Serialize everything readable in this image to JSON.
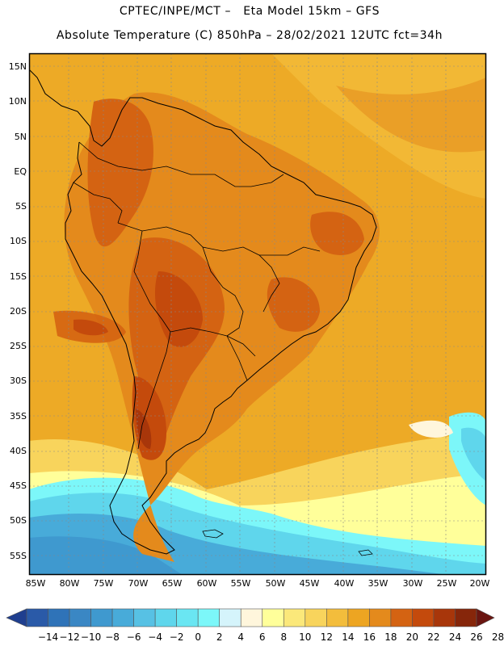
{
  "header": {
    "line1": "CPTEC/INPE/MCT –   Eta Model 15km – GFS",
    "line2": "Absolute Temperature (C) 850hPa – 28/02/2021 12UTC fct=34h"
  },
  "map": {
    "lat_labels": [
      "15N",
      "10N",
      "5N",
      "EQ",
      "5S",
      "10S",
      "15S",
      "20S",
      "25S",
      "30S",
      "35S",
      "40S",
      "45S",
      "50S",
      "55S"
    ],
    "lon_labels": [
      "85W",
      "80W",
      "75W",
      "70W",
      "65W",
      "60W",
      "55W",
      "50W",
      "45W",
      "40W",
      "35W",
      "30W",
      "25W",
      "20W"
    ],
    "lon_range": [
      -86,
      -19
    ],
    "lat_range": [
      -57,
      16
    ],
    "region": "South America"
  },
  "colorbar": {
    "labels": [
      "-14",
      "-12",
      "-10",
      "-8",
      "-6",
      "-4",
      "-2",
      "0",
      "2",
      "4",
      "6",
      "8",
      "10",
      "12",
      "14",
      "16",
      "18",
      "20",
      "22",
      "24",
      "26",
      "28"
    ],
    "colors": [
      "#1f3f8f",
      "#2a5aa8",
      "#2f73b8",
      "#3a87c4",
      "#3f99cf",
      "#48abd9",
      "#57c1e4",
      "#5fd6ec",
      "#6ae6f2",
      "#7cf7f9",
      "#d5f4fb",
      "#fff6dc",
      "#ffff9a",
      "#fbe87a",
      "#f8d45c",
      "#f3bd3c",
      "#eda522",
      "#e48a1c",
      "#d46312",
      "#c44a0c",
      "#a8360a",
      "#86260a",
      "#6a1510"
    ]
  }
}
